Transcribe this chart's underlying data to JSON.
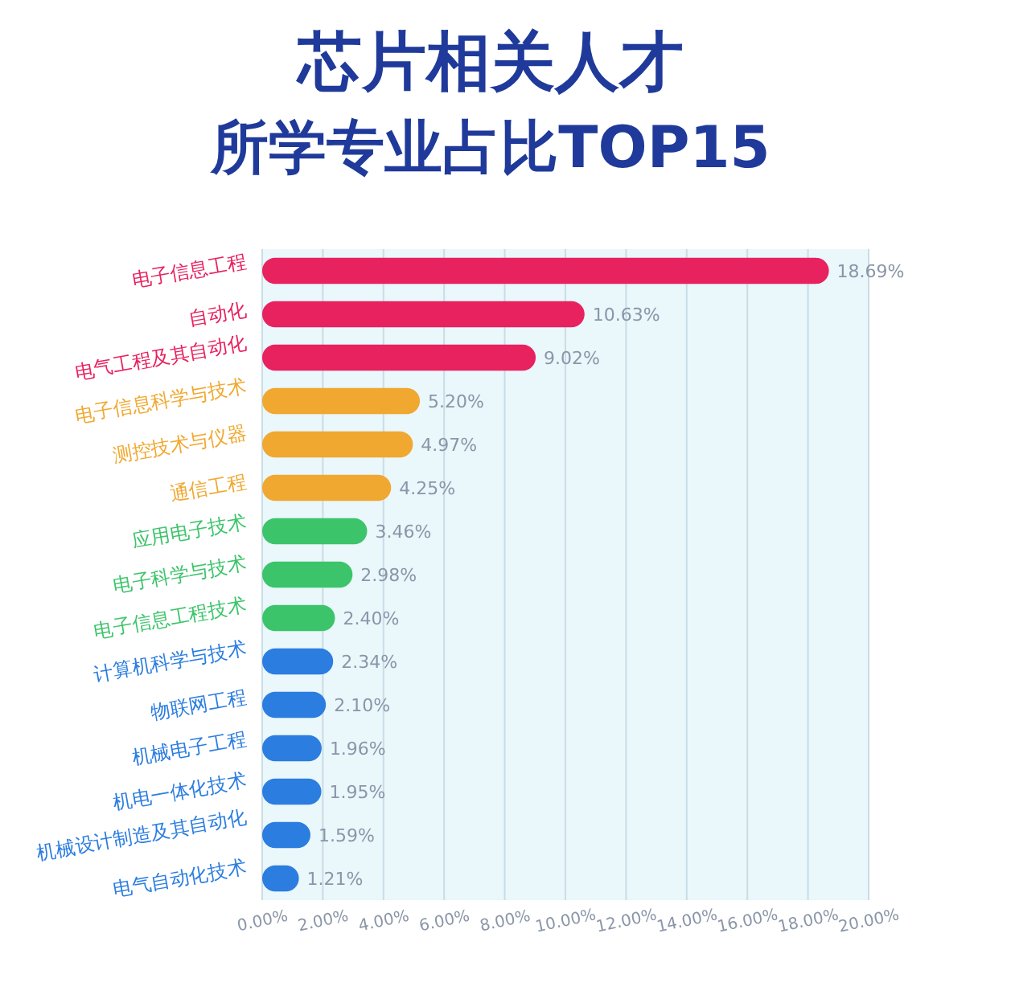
{
  "chart_data": {
    "type": "bar",
    "orientation": "horizontal",
    "title": "芯片相关人才",
    "subtitle": "所学专业占比TOP15",
    "categories": [
      "电子信息工程",
      "自动化",
      "电气工程及其自动化",
      "电子信息科学与技术",
      "测控技术与仪器",
      "通信工程",
      "应用电子技术",
      "电子科学与技术",
      "电子信息工程技术",
      "计算机科学与技术",
      "物联网工程",
      "机械电子工程",
      "机电一体化技术",
      "机械设计制造及其自动化",
      "电气自动化技术"
    ],
    "values": [
      18.69,
      10.63,
      9.02,
      5.2,
      4.97,
      4.25,
      3.46,
      2.98,
      2.4,
      2.34,
      2.1,
      1.96,
      1.95,
      1.59,
      1.21
    ],
    "value_labels": [
      "18.69%",
      "10.63%",
      "9.02%",
      "5.20%",
      "4.97%",
      "4.25%",
      "3.46%",
      "2.98%",
      "2.40%",
      "2.34%",
      "2.10%",
      "1.96%",
      "1.95%",
      "1.59%",
      "1.21%"
    ],
    "colors": [
      "#e8215f",
      "#e8215f",
      "#e8215f",
      "#f0a830",
      "#f0a830",
      "#f0a830",
      "#3cc46a",
      "#3cc46a",
      "#3cc46a",
      "#2b7de0",
      "#2b7de0",
      "#2b7de0",
      "#2b7de0",
      "#2b7de0",
      "#2b7de0"
    ],
    "xlim": [
      0,
      20
    ],
    "xticks": [
      {
        "value": 0,
        "label": "0.00%"
      },
      {
        "value": 2,
        "label": "2.00%"
      },
      {
        "value": 4,
        "label": "4.00%"
      },
      {
        "value": 6,
        "label": "6.00%"
      },
      {
        "value": 8,
        "label": "8.00%"
      },
      {
        "value": 10,
        "label": "10.00%"
      },
      {
        "value": 12,
        "label": "12.00%"
      },
      {
        "value": 14,
        "label": "14.00%"
      },
      {
        "value": 16,
        "label": "16.00%"
      },
      {
        "value": 18,
        "label": "18.00%"
      },
      {
        "value": 20,
        "label": "20.00%"
      }
    ],
    "grid": "x"
  }
}
